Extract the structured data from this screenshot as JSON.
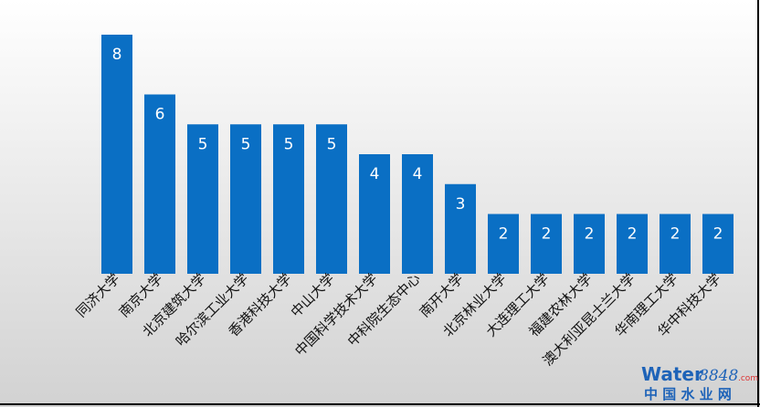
{
  "chart_data": {
    "type": "bar",
    "categories": [
      "同济大学",
      "南京大学",
      "北京建筑大学",
      "哈尔滨工业大学",
      "香港科技大学",
      "中山大学",
      "中国科学技术大学",
      "中科院生态中心",
      "南开大学",
      "北京林业大学",
      "大连理工大学",
      "福建农林大学",
      "澳大利亚昆士兰大学",
      "华南理工大学",
      "华中科技大学"
    ],
    "values": [
      8,
      6,
      5,
      5,
      5,
      5,
      4,
      4,
      3,
      2,
      2,
      2,
      2,
      2,
      2
    ],
    "color": "#0a6fc4"
  },
  "watermark": {
    "brand": "Water",
    "number": "8848",
    "domain": ".com",
    "name": "中 国 水 业 网"
  }
}
